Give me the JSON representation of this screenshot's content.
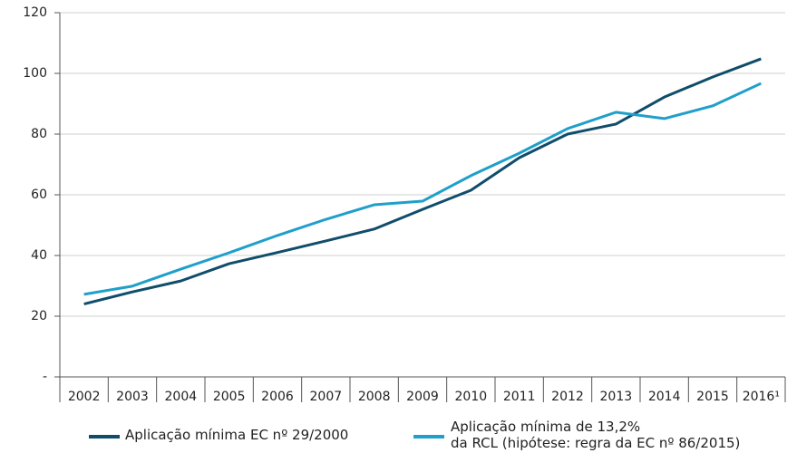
{
  "chart_data": {
    "type": "line",
    "categories": [
      "2002",
      "2003",
      "2004",
      "2005",
      "2006",
      "2007",
      "2008",
      "2009",
      "2010",
      "2011",
      "2012",
      "2013",
      "2014",
      "2015",
      "2016¹"
    ],
    "series": [
      {
        "name": "Aplicação mínima EC nº 29/2000",
        "color": "#0f4d6b",
        "values": [
          24,
          28,
          31.6,
          37.3,
          41,
          44.8,
          48.7,
          55.2,
          61.5,
          72.2,
          80,
          83.3,
          92.2,
          98.8,
          104.8
        ]
      },
      {
        "name": "Aplicação mínima de 13,2%\nda RCL (hipótese: regra da EC nº 86/2015)",
        "color": "#1f9fca",
        "values": [
          27.2,
          29.9,
          35.5,
          40.9,
          46.6,
          51.9,
          56.7,
          57.9,
          66.3,
          73.7,
          81.8,
          87.2,
          85.1,
          89.3,
          96.7
        ]
      }
    ],
    "ylim": [
      0,
      120
    ],
    "yticks": [
      {
        "value": 0,
        "label": "-"
      },
      20,
      40,
      60,
      80,
      100,
      120
    ],
    "grid": true,
    "legend": "bottom"
  }
}
